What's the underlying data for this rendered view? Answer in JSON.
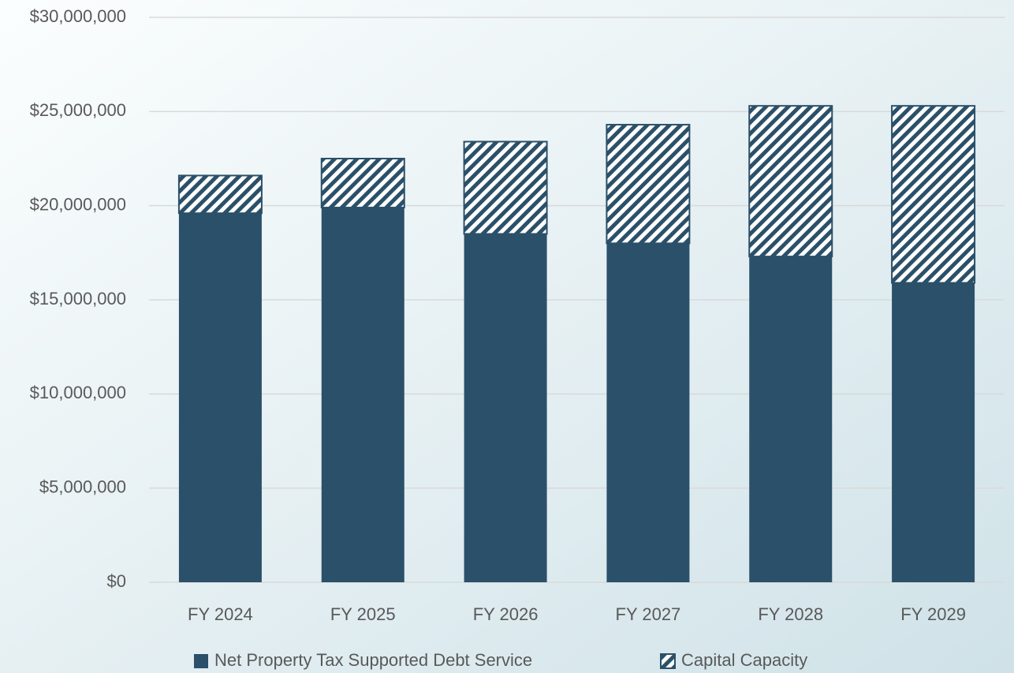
{
  "chart_data": {
    "type": "stacked_bar",
    "categories": [
      "FY 2024",
      "FY 2025",
      "FY 2026",
      "FY 2027",
      "FY 2028",
      "FY 2029"
    ],
    "series": [
      {
        "name": "Net Property Tax Supported Debt Service",
        "color": "#2b5069",
        "hatch": false,
        "values": [
          19600000,
          19900000,
          18500000,
          18000000,
          17300000,
          15900000
        ]
      },
      {
        "name": "Capital Capacity",
        "color": "#2b5069",
        "hatch": true,
        "values": [
          2000000,
          2600000,
          4900000,
          6300000,
          8000000,
          9400000
        ]
      }
    ],
    "ylim": [
      0,
      30000000
    ],
    "yticks": [
      {
        "value": 0,
        "label": "$0"
      },
      {
        "value": 5000000,
        "label": "$5,000,000"
      },
      {
        "value": 10000000,
        "label": "$10,000,000"
      },
      {
        "value": 15000000,
        "label": "$15,000,000"
      },
      {
        "value": 20000000,
        "label": "$20,000,000"
      },
      {
        "value": 25000000,
        "label": "$25,000,000"
      },
      {
        "value": 30000000,
        "label": "$30,000,000"
      }
    ],
    "grid": true,
    "legend": "bottom"
  }
}
